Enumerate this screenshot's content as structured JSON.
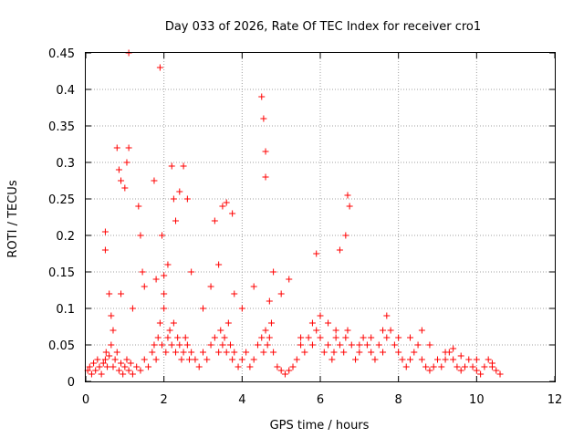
{
  "chart_data": {
    "type": "scatter",
    "title": "Day 033 of 2026, Rate Of TEC Index for receiver cro1",
    "xlabel": "GPS time / hours",
    "ylabel": "ROTI / TECUs",
    "xlim": [
      0,
      12
    ],
    "ylim": [
      0,
      0.45
    ],
    "x_ticks": [
      "0",
      "2",
      "4",
      "6",
      "8",
      "10",
      "12"
    ],
    "y_ticks": [
      "0",
      "0.05",
      "0.1",
      "0.15",
      "0.2",
      "0.25",
      "0.3",
      "0.35",
      "0.4",
      "0.45"
    ],
    "grid": true,
    "marker": "+",
    "colors": {
      "points": "#ff0000",
      "grid": "#a0a0a0",
      "frame": "#000000"
    },
    "series": [
      {
        "x": [
          0.05,
          0.1,
          0.15,
          0.2,
          0.25,
          0.3,
          0.35,
          0.4,
          0.45,
          0.5,
          0.52,
          0.55,
          0.6,
          0.65,
          0.7,
          0.75,
          0.8,
          0.85,
          0.9,
          0.95,
          1.0,
          1.05,
          1.1,
          1.15,
          1.2,
          1.3,
          1.4,
          1.5,
          1.6,
          1.7,
          1.75,
          1.8,
          1.85,
          1.9,
          1.95,
          2.0,
          2.05,
          2.1,
          2.15,
          2.2,
          2.25,
          2.3,
          2.35,
          2.4,
          2.45,
          2.5,
          2.55,
          2.6,
          2.65,
          2.7,
          2.8,
          2.9,
          3.0,
          3.1,
          3.2,
          3.3,
          3.4,
          3.45,
          3.5,
          3.55,
          3.6,
          3.65,
          3.7,
          3.75,
          3.8,
          3.9,
          4.0,
          4.1,
          4.2,
          4.3,
          4.4,
          4.5,
          4.55,
          4.6,
          4.65,
          4.7,
          4.75,
          4.8,
          4.9,
          5.0,
          5.1,
          5.2,
          5.3,
          5.4,
          5.5,
          5.6,
          5.7,
          5.8,
          5.9,
          6.0,
          6.1,
          6.2,
          6.3,
          6.35,
          6.4,
          6.5,
          6.6,
          6.65,
          6.7,
          6.8,
          6.9,
          7.0,
          7.1,
          7.2,
          7.3,
          7.4,
          7.5,
          7.6,
          7.7,
          7.8,
          7.9,
          8.0,
          8.1,
          8.2,
          8.3,
          8.4,
          8.5,
          8.6,
          8.7,
          8.8,
          8.9,
          9.0,
          9.1,
          9.2,
          9.3,
          9.4,
          9.5,
          9.6,
          9.7,
          9.8,
          9.9,
          10.0,
          10.1,
          10.2,
          10.3,
          10.4,
          10.5,
          10.6,
          0.5,
          0.5,
          0.8,
          0.85,
          0.9,
          1.0,
          1.05,
          1.1,
          1.1,
          1.35,
          1.4,
          1.45,
          1.75,
          1.9,
          1.95,
          2.0,
          2.1,
          2.2,
          2.25,
          2.3,
          2.4,
          2.5,
          2.6,
          3.3,
          3.5,
          3.6,
          3.75,
          4.5,
          4.55,
          4.6,
          4.6,
          4.8,
          5.9,
          6.5,
          6.65,
          6.7,
          6.75,
          7.7,
          8.6,
          9.4,
          0.6,
          0.65,
          0.7,
          0.9,
          1.2,
          1.5,
          1.8,
          2.0,
          2.7,
          3.0,
          3.2,
          3.4,
          3.8,
          4.0,
          4.3,
          4.7,
          5.0,
          5.2,
          5.5,
          5.8,
          6.0,
          6.2,
          6.4,
          7.0,
          7.3,
          7.6,
          8.0,
          8.3,
          8.8,
          9.2,
          9.6,
          10.0,
          10.4
        ],
        "y": [
          0.015,
          0.02,
          0.01,
          0.025,
          0.015,
          0.03,
          0.02,
          0.01,
          0.025,
          0.03,
          0.04,
          0.02,
          0.035,
          0.05,
          0.02,
          0.03,
          0.04,
          0.015,
          0.025,
          0.01,
          0.02,
          0.03,
          0.015,
          0.025,
          0.01,
          0.02,
          0.015,
          0.03,
          0.02,
          0.04,
          0.05,
          0.03,
          0.06,
          0.08,
          0.05,
          0.1,
          0.04,
          0.06,
          0.07,
          0.05,
          0.08,
          0.04,
          0.06,
          0.05,
          0.03,
          0.04,
          0.06,
          0.05,
          0.03,
          0.04,
          0.03,
          0.02,
          0.04,
          0.03,
          0.05,
          0.06,
          0.04,
          0.07,
          0.05,
          0.06,
          0.04,
          0.08,
          0.05,
          0.03,
          0.04,
          0.02,
          0.03,
          0.04,
          0.02,
          0.03,
          0.05,
          0.06,
          0.04,
          0.07,
          0.05,
          0.06,
          0.08,
          0.04,
          0.02,
          0.015,
          0.01,
          0.015,
          0.02,
          0.03,
          0.05,
          0.04,
          0.06,
          0.05,
          0.07,
          0.06,
          0.04,
          0.05,
          0.03,
          0.04,
          0.06,
          0.05,
          0.04,
          0.06,
          0.07,
          0.05,
          0.03,
          0.04,
          0.06,
          0.05,
          0.04,
          0.03,
          0.05,
          0.04,
          0.06,
          0.07,
          0.05,
          0.04,
          0.03,
          0.02,
          0.03,
          0.04,
          0.05,
          0.03,
          0.02,
          0.015,
          0.02,
          0.03,
          0.02,
          0.03,
          0.04,
          0.03,
          0.02,
          0.015,
          0.02,
          0.03,
          0.02,
          0.015,
          0.01,
          0.02,
          0.03,
          0.02,
          0.015,
          0.01,
          0.205,
          0.18,
          0.32,
          0.29,
          0.275,
          0.265,
          0.3,
          0.32,
          0.45,
          0.24,
          0.2,
          0.15,
          0.275,
          0.43,
          0.2,
          0.145,
          0.16,
          0.295,
          0.25,
          0.22,
          0.26,
          0.295,
          0.25,
          0.22,
          0.24,
          0.245,
          0.23,
          0.39,
          0.36,
          0.315,
          0.28,
          0.15,
          0.175,
          0.18,
          0.2,
          0.255,
          0.24,
          0.09,
          0.07,
          0.045,
          0.12,
          0.09,
          0.07,
          0.12,
          0.1,
          0.13,
          0.14,
          0.12,
          0.15,
          0.1,
          0.13,
          0.16,
          0.12,
          0.1,
          0.13,
          0.11,
          0.12,
          0.14,
          0.06,
          0.08,
          0.09,
          0.08,
          0.07,
          0.05,
          0.06,
          0.07,
          0.06,
          0.06,
          0.05,
          0.04,
          0.035,
          0.03,
          0.025
        ]
      }
    ]
  }
}
